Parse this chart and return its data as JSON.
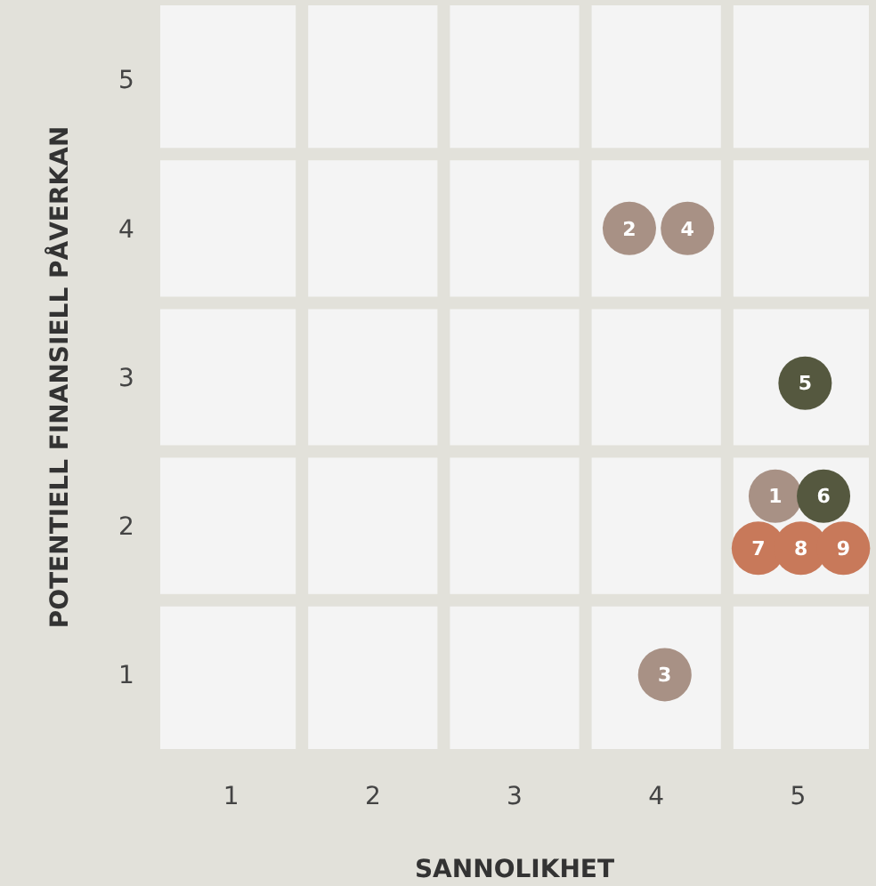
{
  "chart_data": {
    "type": "scatter",
    "xlabel": "SANNOLIKHET",
    "ylabel": "POTENTIELL FINANSIELL PÅVERKAN",
    "xlim": [
      0.5,
      5.5
    ],
    "ylim": [
      0.5,
      5.5
    ],
    "xticks": [
      1,
      2,
      3,
      4,
      5
    ],
    "yticks": [
      1,
      2,
      3,
      4,
      5
    ],
    "marker": "circle",
    "series": [
      {
        "color": "#a89185",
        "x": [
          3.81,
          4.22,
          4.06,
          4.84
        ],
        "values": [
          4,
          4,
          1,
          2.2
        ]
      },
      {
        "color": "#55583f",
        "x": [
          5.05,
          5.18
        ],
        "values": [
          2.96,
          2.2
        ]
      },
      {
        "color": "#c8795a",
        "x": [
          4.72,
          5.02,
          5.32
        ],
        "values": [
          1.85,
          1.85,
          1.85
        ]
      }
    ],
    "annotations": [
      {
        "text": "2",
        "x": 3.81,
        "y": 4
      },
      {
        "text": "4",
        "x": 4.22,
        "y": 4
      },
      {
        "text": "3",
        "x": 4.06,
        "y": 1
      },
      {
        "text": "1",
        "x": 4.84,
        "y": 2.2
      },
      {
        "text": "5",
        "x": 5.05,
        "y": 2.96
      },
      {
        "text": "6",
        "x": 5.18,
        "y": 2.2
      },
      {
        "text": "7",
        "x": 4.72,
        "y": 1.85
      },
      {
        "text": "8",
        "x": 5.02,
        "y": 1.85
      },
      {
        "text": "9",
        "x": 5.32,
        "y": 1.85
      }
    ]
  }
}
